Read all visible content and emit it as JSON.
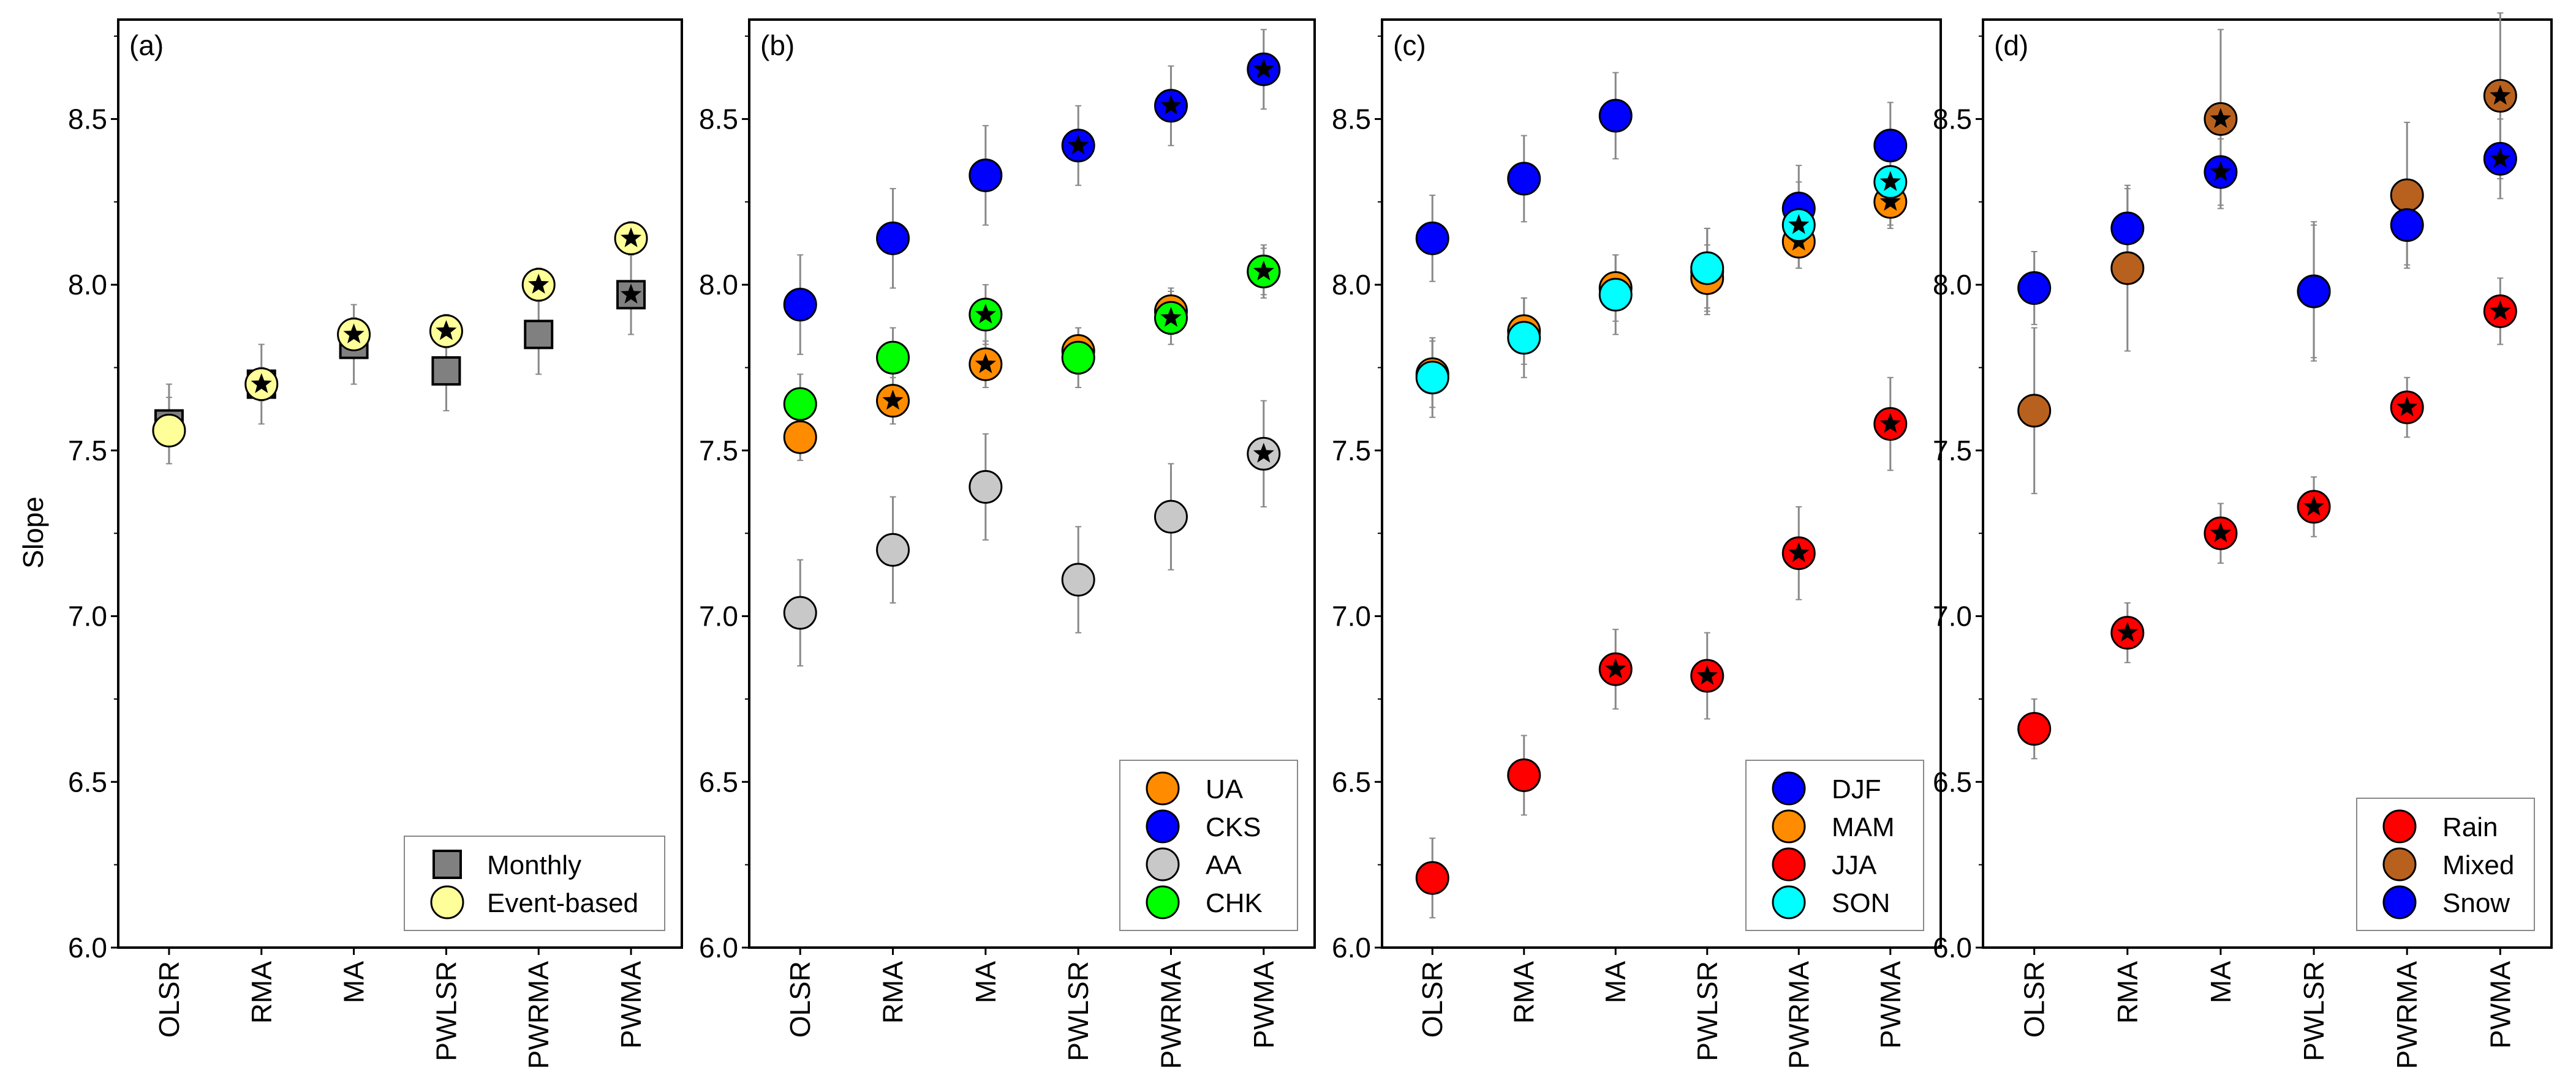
{
  "chart_data": {
    "type": "scatter",
    "ylabel": "Slope",
    "ylim": [
      6.0,
      8.8
    ],
    "yticks": [
      "6.0",
      "6.5",
      "7.0",
      "7.5",
      "8.0",
      "8.5"
    ],
    "categories": [
      "OLSR",
      "RMA",
      "MA",
      "PWLSR",
      "PWRMA",
      "PWMA"
    ],
    "star_meaning": "star marker overlay on point",
    "panels": [
      {
        "label": "(a)",
        "legend_position": "bottom-right",
        "series": [
          {
            "name": "Monthly",
            "marker": "square",
            "color": "#808080",
            "values": [
              7.58,
              7.7,
              7.82,
              7.74,
              7.85,
              7.97
            ],
            "err": [
              0.12,
              0.12,
              0.12,
              0.12,
              0.12,
              0.12
            ],
            "star": [
              false,
              false,
              false,
              false,
              false,
              true
            ]
          },
          {
            "name": "Event-based",
            "marker": "circle",
            "color": "#FFFF99",
            "values": [
              7.56,
              7.7,
              7.85,
              7.86,
              8.0,
              8.14
            ],
            "err": [
              0.1,
              0.05,
              0.05,
              0.05,
              0.05,
              0.05
            ],
            "star": [
              false,
              true,
              true,
              true,
              true,
              true
            ]
          }
        ]
      },
      {
        "label": "(b)",
        "legend_position": "bottom-right",
        "series": [
          {
            "name": "UA",
            "marker": "circle",
            "color": "#FF8C00",
            "values": [
              7.54,
              7.65,
              7.76,
              7.8,
              7.92,
              8.04
            ],
            "err": [
              0.07,
              0.07,
              0.07,
              0.07,
              0.07,
              0.07
            ],
            "star": [
              false,
              true,
              true,
              false,
              false,
              true
            ]
          },
          {
            "name": "CKS",
            "marker": "circle",
            "color": "#0000FF",
            "values": [
              7.94,
              8.14,
              8.33,
              8.42,
              8.54,
              8.65
            ],
            "err": [
              0.15,
              0.15,
              0.15,
              0.12,
              0.12,
              0.12
            ],
            "star": [
              false,
              false,
              false,
              true,
              true,
              true
            ]
          },
          {
            "name": "AA",
            "marker": "circle",
            "color": "#C8C8C8",
            "values": [
              7.01,
              7.2,
              7.39,
              7.11,
              7.3,
              7.49
            ],
            "err": [
              0.16,
              0.16,
              0.16,
              0.16,
              0.16,
              0.16
            ],
            "star": [
              false,
              false,
              false,
              false,
              false,
              true
            ]
          },
          {
            "name": "CHK",
            "marker": "circle",
            "color": "#00FF00",
            "values": [
              7.64,
              7.78,
              7.91,
              7.78,
              7.9,
              8.04
            ],
            "err": [
              0.09,
              0.09,
              0.09,
              0.09,
              0.08,
              0.08
            ],
            "star": [
              false,
              false,
              true,
              false,
              true,
              true
            ]
          }
        ]
      },
      {
        "label": "(c)",
        "legend_position": "bottom-right",
        "series": [
          {
            "name": "DJF",
            "marker": "circle",
            "color": "#0000FF",
            "values": [
              8.14,
              8.32,
              8.51,
              8.04,
              8.23,
              8.42
            ],
            "err": [
              0.13,
              0.13,
              0.13,
              0.13,
              0.13,
              0.13
            ],
            "star": [
              false,
              false,
              false,
              false,
              false,
              false
            ]
          },
          {
            "name": "MAM",
            "marker": "circle",
            "color": "#FF8C00",
            "values": [
              7.73,
              7.86,
              7.99,
              8.02,
              8.13,
              8.25
            ],
            "err": [
              0.1,
              0.1,
              0.1,
              0.1,
              0.08,
              0.08
            ],
            "star": [
              false,
              false,
              false,
              false,
              true,
              true
            ]
          },
          {
            "name": "JJA",
            "marker": "circle",
            "color": "#FF0000",
            "values": [
              6.21,
              6.52,
              6.84,
              6.82,
              7.19,
              7.58
            ],
            "err": [
              0.12,
              0.12,
              0.12,
              0.13,
              0.14,
              0.14
            ],
            "star": [
              false,
              false,
              true,
              true,
              true,
              true
            ]
          },
          {
            "name": "SON",
            "marker": "circle",
            "color": "#00FFFF",
            "values": [
              7.72,
              7.84,
              7.97,
              8.05,
              8.18,
              8.31
            ],
            "err": [
              0.12,
              0.12,
              0.12,
              0.12,
              0.13,
              0.13
            ],
            "star": [
              false,
              false,
              false,
              false,
              true,
              true
            ]
          }
        ]
      },
      {
        "label": "(d)",
        "legend_position": "bottom-right",
        "series": [
          {
            "name": "Rain",
            "marker": "circle",
            "color": "#FF0000",
            "values": [
              6.66,
              6.95,
              7.25,
              7.33,
              7.63,
              7.92
            ],
            "err": [
              0.09,
              0.09,
              0.09,
              0.09,
              0.09,
              0.1
            ],
            "star": [
              false,
              true,
              true,
              true,
              true,
              true
            ]
          },
          {
            "name": "Mixed",
            "marker": "circle",
            "color": "#B8611E",
            "values": [
              7.62,
              8.05,
              8.5,
              7.98,
              8.27,
              8.57
            ],
            "err": [
              0.25,
              0.25,
              0.27,
              0.2,
              0.22,
              0.25
            ],
            "star": [
              false,
              false,
              true,
              false,
              false,
              true
            ]
          },
          {
            "name": "Snow",
            "marker": "circle",
            "color": "#0000FF",
            "values": [
              7.99,
              8.17,
              8.34,
              7.98,
              8.18,
              8.38
            ],
            "err": [
              0.11,
              0.12,
              0.1,
              0.21,
              0.12,
              0.12
            ],
            "star": [
              false,
              false,
              true,
              false,
              false,
              true
            ]
          }
        ]
      }
    ]
  }
}
